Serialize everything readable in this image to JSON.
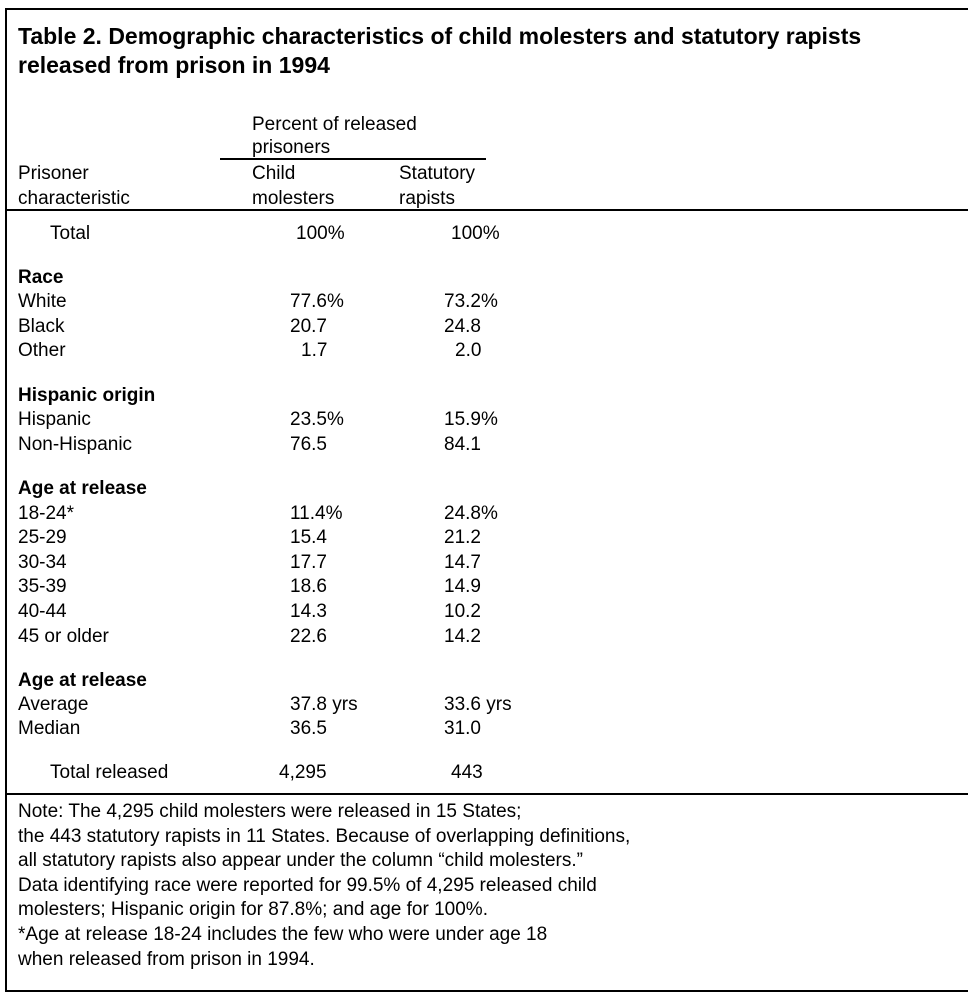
{
  "title": "Table 2. Demographic characteristics of child molesters and statutory rapists released from prison in 1994",
  "header": {
    "spanner_line1": "Percent of released",
    "spanner_line2": "prisoners",
    "stub_line1": "Prisoner",
    "stub_line2": "characteristic",
    "col1_line1": "Child",
    "col1_line2": "molesters",
    "col2_line1": "Statutory",
    "col2_line2": "rapists"
  },
  "total": {
    "label": "Total",
    "child": "100%",
    "statutory": "100%"
  },
  "sections": {
    "race": {
      "heading": "Race",
      "rows": [
        {
          "label": "White",
          "child": "77.6%",
          "statutory": "73.2%"
        },
        {
          "label": "Black",
          "child": "20.7",
          "statutory": "24.8"
        },
        {
          "label": "Other",
          "child": "1.7",
          "statutory": "2.0"
        }
      ]
    },
    "hispanic": {
      "heading": "Hispanic origin",
      "rows": [
        {
          "label": "Hispanic",
          "child": "23.5%",
          "statutory": "15.9%"
        },
        {
          "label": "Non-Hispanic",
          "child": "76.5",
          "statutory": "84.1"
        }
      ]
    },
    "age": {
      "heading": "Age at release",
      "rows": [
        {
          "label": "18-24*",
          "child": "11.4%",
          "statutory": "24.8%"
        },
        {
          "label": "25-29",
          "child": "15.4",
          "statutory": "21.2"
        },
        {
          "label": "30-34",
          "child": "17.7",
          "statutory": "14.7"
        },
        {
          "label": "35-39",
          "child": "18.6",
          "statutory": "14.9"
        },
        {
          "label": "40-44",
          "child": "14.3",
          "statutory": "10.2"
        },
        {
          "label": "45 or older",
          "child": "22.6",
          "statutory": "14.2"
        }
      ]
    },
    "age_stats": {
      "heading": "Age at release",
      "rows": [
        {
          "label": "Average",
          "child": "37.8 yrs",
          "statutory": "33.6 yrs"
        },
        {
          "label": "Median",
          "child": "36.5",
          "statutory": "31.0"
        }
      ]
    }
  },
  "total_released": {
    "label": "Total released",
    "child": "4,295",
    "statutory": "443"
  },
  "note": {
    "line1": "Note: The 4,295 child molesters were released in 15 States;",
    "line2": "the 443 statutory rapists in 11 States. Because of overlapping definitions,",
    "line3": "all statutory rapists also appear under the column “child molesters.”",
    "line4": "Data identifying race were reported for 99.5% of 4,295 released child",
    "line5": "molesters; Hispanic origin for 87.8%; and age for 100%.",
    "line6": "*Age at release 18-24 includes the few who were under age 18",
    "line7": "when released from prison in 1994."
  }
}
